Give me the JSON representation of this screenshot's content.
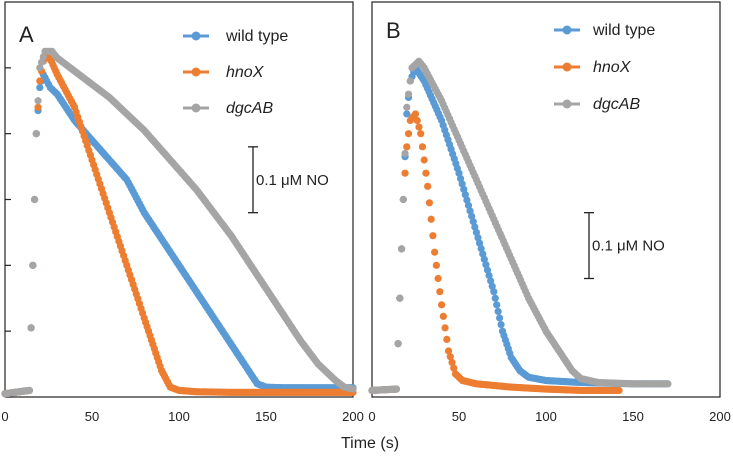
{
  "colors": {
    "wild_type": "#5B9BD5",
    "hnoX": "#ED7D31",
    "dgcAB": "#A5A5A5",
    "axis": "#222222"
  },
  "x_axis_title": "Time (s)",
  "chart_data": [
    {
      "type": "scatter",
      "panel_label": "A",
      "xlabel": "Time (s)",
      "ylabel": "",
      "xlim": [
        0,
        200
      ],
      "ylim": [
        0,
        0.6
      ],
      "y_ticks": [
        0,
        0.1,
        0.2,
        0.3,
        0.4,
        0.5
      ],
      "x_tick_labels": [
        "0",
        "50",
        "100",
        "150",
        "200"
      ],
      "legend_position": "top-right",
      "scale_bar": {
        "label": "0.1 μM NO",
        "value": 0.1,
        "from": 0.28,
        "to": 0.38
      },
      "series": [
        {
          "name": "wild type",
          "italic": false,
          "color_key": "wild_type",
          "points": [
            [
              0,
              0.005
            ],
            [
              14,
              0.01
            ],
            [
              16,
              0.2
            ],
            [
              18,
              0.4
            ],
            [
              20,
              0.47
            ],
            [
              22,
              0.49
            ],
            [
              26,
              0.47
            ],
            [
              30,
              0.46
            ],
            [
              40,
              0.42
            ],
            [
              50,
              0.39
            ],
            [
              60,
              0.36
            ],
            [
              70,
              0.33
            ],
            [
              80,
              0.28
            ],
            [
              90,
              0.24
            ],
            [
              100,
              0.2
            ],
            [
              110,
              0.16
            ],
            [
              120,
              0.12
            ],
            [
              130,
              0.08
            ],
            [
              140,
              0.04
            ],
            [
              145,
              0.02
            ],
            [
              150,
              0.015
            ],
            [
              160,
              0.014
            ],
            [
              175,
              0.014
            ],
            [
              200,
              0.014
            ]
          ]
        },
        {
          "name": "hnoX",
          "italic": true,
          "color_key": "hnoX",
          "points": [
            [
              0,
              0.005
            ],
            [
              14,
              0.01
            ],
            [
              16,
              0.2
            ],
            [
              18,
              0.4
            ],
            [
              20,
              0.48
            ],
            [
              22,
              0.51
            ],
            [
              25,
              0.52
            ],
            [
              30,
              0.49
            ],
            [
              40,
              0.44
            ],
            [
              50,
              0.36
            ],
            [
              60,
              0.28
            ],
            [
              70,
              0.2
            ],
            [
              80,
              0.12
            ],
            [
              85,
              0.08
            ],
            [
              90,
              0.04
            ],
            [
              95,
              0.015
            ],
            [
              100,
              0.01
            ],
            [
              110,
              0.008
            ],
            [
              130,
              0.007
            ],
            [
              160,
              0.007
            ],
            [
              200,
              0.007
            ]
          ]
        },
        {
          "name": "dgcAB",
          "italic": true,
          "color_key": "dgcAB",
          "points": [
            [
              0,
              0.005
            ],
            [
              14,
              0.01
            ],
            [
              16,
              0.2
            ],
            [
              18,
              0.4
            ],
            [
              20,
              0.5
            ],
            [
              23,
              0.525
            ],
            [
              27,
              0.525
            ],
            [
              30,
              0.515
            ],
            [
              40,
              0.495
            ],
            [
              50,
              0.475
            ],
            [
              60,
              0.455
            ],
            [
              70,
              0.43
            ],
            [
              80,
              0.405
            ],
            [
              90,
              0.375
            ],
            [
              100,
              0.345
            ],
            [
              110,
              0.315
            ],
            [
              120,
              0.28
            ],
            [
              130,
              0.245
            ],
            [
              140,
              0.205
            ],
            [
              150,
              0.165
            ],
            [
              160,
              0.125
            ],
            [
              170,
              0.085
            ],
            [
              180,
              0.05
            ],
            [
              190,
              0.025
            ],
            [
              195,
              0.015
            ],
            [
              200,
              0.012
            ]
          ]
        }
      ]
    },
    {
      "type": "scatter",
      "panel_label": "B",
      "xlabel": "Time (s)",
      "ylabel": "",
      "xlim": [
        0,
        200
      ],
      "ylim": [
        0,
        0.6
      ],
      "y_ticks": [],
      "x_tick_labels": [
        "0",
        "50",
        "100",
        "150",
        "200"
      ],
      "legend_position": "top-right",
      "scale_bar": {
        "label": "0.1 μM NO",
        "value": 0.1,
        "from": 0.18,
        "to": 0.28
      },
      "series": [
        {
          "name": "wild type",
          "italic": false,
          "color_key": "wild_type",
          "points": [
            [
              0,
              0.01
            ],
            [
              14,
              0.012
            ],
            [
              16,
              0.15
            ],
            [
              18,
              0.3
            ],
            [
              20,
              0.43
            ],
            [
              22,
              0.48
            ],
            [
              25,
              0.5
            ],
            [
              30,
              0.48
            ],
            [
              40,
              0.42
            ],
            [
              50,
              0.34
            ],
            [
              60,
              0.25
            ],
            [
              70,
              0.16
            ],
            [
              75,
              0.1
            ],
            [
              80,
              0.06
            ],
            [
              85,
              0.04
            ],
            [
              90,
              0.03
            ],
            [
              100,
              0.025
            ],
            [
              120,
              0.022
            ],
            [
              150,
              0.02
            ],
            [
              170,
              0.02
            ]
          ]
        },
        {
          "name": "hnoX",
          "italic": true,
          "color_key": "hnoX",
          "points": [
            [
              0,
              0.01
            ],
            [
              14,
              0.012
            ],
            [
              16,
              0.15
            ],
            [
              18,
              0.3
            ],
            [
              20,
              0.38
            ],
            [
              22,
              0.42
            ],
            [
              25,
              0.43
            ],
            [
              28,
              0.4
            ],
            [
              32,
              0.32
            ],
            [
              36,
              0.22
            ],
            [
              40,
              0.14
            ],
            [
              44,
              0.07
            ],
            [
              48,
              0.035
            ],
            [
              52,
              0.025
            ],
            [
              60,
              0.02
            ],
            [
              80,
              0.015
            ],
            [
              100,
              0.012
            ],
            [
              120,
              0.01
            ],
            [
              142,
              0.01
            ]
          ]
        },
        {
          "name": "dgcAB",
          "italic": true,
          "color_key": "dgcAB",
          "points": [
            [
              0,
              0.01
            ],
            [
              14,
              0.012
            ],
            [
              16,
              0.15
            ],
            [
              18,
              0.3
            ],
            [
              20,
              0.44
            ],
            [
              23,
              0.5
            ],
            [
              27,
              0.51
            ],
            [
              30,
              0.5
            ],
            [
              40,
              0.45
            ],
            [
              50,
              0.39
            ],
            [
              60,
              0.33
            ],
            [
              70,
              0.27
            ],
            [
              80,
              0.21
            ],
            [
              90,
              0.15
            ],
            [
              100,
              0.1
            ],
            [
              110,
              0.06
            ],
            [
              115,
              0.04
            ],
            [
              120,
              0.028
            ],
            [
              130,
              0.022
            ],
            [
              150,
              0.02
            ],
            [
              170,
              0.02
            ]
          ]
        }
      ]
    }
  ]
}
